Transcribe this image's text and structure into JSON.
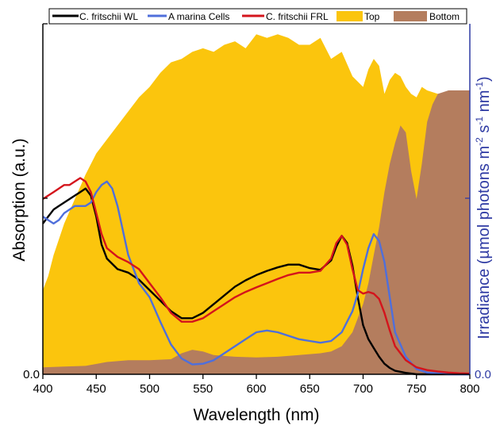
{
  "chart_data": {
    "type": "area",
    "xlabel": "Wavelength (nm)",
    "ylabel_left": "Absorption (a.u.)",
    "ylabel_right_parts": [
      "Irradiance (µmol photons m",
      "-2",
      " s",
      "-1",
      " nm",
      "-1",
      ")"
    ],
    "xlim": [
      400,
      800
    ],
    "x_ticks": [
      400,
      450,
      500,
      550,
      600,
      650,
      700,
      750,
      800
    ],
    "y_left_tick_label": "0.0",
    "y_right_tick_label": "0.0",
    "grid": false,
    "legend_position": "top",
    "colors": {
      "wl": "#000000",
      "cells": "#4f6fdb",
      "frl": "#d4141c",
      "top": "#fbc50d",
      "bottom": "#b47d5e",
      "right_axis": "#2e3aa3"
    },
    "area_series": [
      {
        "name": "Top",
        "color": "#fbc50d",
        "x": [
          400,
          405,
          410,
          420,
          430,
          440,
          450,
          460,
          470,
          480,
          490,
          500,
          510,
          520,
          530,
          540,
          550,
          560,
          570,
          580,
          590,
          600,
          610,
          620,
          630,
          640,
          650,
          660,
          670,
          680,
          690,
          700,
          705,
          710,
          715,
          720,
          725,
          730,
          735,
          740,
          745,
          750,
          755,
          760,
          770,
          780,
          790,
          800
        ],
        "y": [
          0.24,
          0.28,
          0.34,
          0.43,
          0.5,
          0.57,
          0.63,
          0.67,
          0.71,
          0.75,
          0.79,
          0.82,
          0.86,
          0.89,
          0.9,
          0.92,
          0.93,
          0.92,
          0.94,
          0.95,
          0.93,
          0.97,
          0.96,
          0.97,
          0.96,
          0.94,
          0.94,
          0.96,
          0.9,
          0.92,
          0.85,
          0.82,
          0.87,
          0.9,
          0.88,
          0.8,
          0.84,
          0.86,
          0.85,
          0.82,
          0.8,
          0.79,
          0.82,
          0.81,
          0.8,
          0.8,
          0.8,
          0.8
        ]
      },
      {
        "name": "Bottom",
        "color": "#b47d5e",
        "x": [
          400,
          420,
          440,
          460,
          480,
          500,
          520,
          530,
          540,
          550,
          560,
          580,
          600,
          620,
          640,
          660,
          670,
          680,
          690,
          700,
          705,
          710,
          715,
          720,
          725,
          730,
          735,
          740,
          745,
          750,
          755,
          760,
          765,
          770,
          780,
          790,
          800
        ],
        "y": [
          0.02,
          0.022,
          0.024,
          0.035,
          0.04,
          0.04,
          0.043,
          0.06,
          0.07,
          0.065,
          0.055,
          0.05,
          0.048,
          0.05,
          0.055,
          0.06,
          0.065,
          0.08,
          0.12,
          0.2,
          0.26,
          0.34,
          0.42,
          0.52,
          0.6,
          0.66,
          0.71,
          0.69,
          0.58,
          0.5,
          0.6,
          0.72,
          0.77,
          0.8,
          0.81,
          0.81,
          0.81
        ]
      }
    ],
    "line_series": [
      {
        "name": "C. fritschii WL",
        "color": "#000000",
        "x": [
          400,
          405,
          410,
          415,
          420,
          425,
          430,
          435,
          440,
          445,
          450,
          455,
          460,
          470,
          480,
          490,
          500,
          510,
          520,
          530,
          540,
          550,
          560,
          570,
          580,
          590,
          600,
          610,
          620,
          630,
          640,
          650,
          660,
          670,
          675,
          680,
          685,
          690,
          695,
          700,
          705,
          710,
          715,
          720,
          725,
          730,
          740,
          750,
          760,
          780,
          800
        ],
        "y": [
          0.43,
          0.45,
          0.47,
          0.48,
          0.49,
          0.5,
          0.51,
          0.52,
          0.53,
          0.51,
          0.45,
          0.37,
          0.33,
          0.3,
          0.29,
          0.27,
          0.24,
          0.21,
          0.18,
          0.16,
          0.16,
          0.175,
          0.2,
          0.225,
          0.25,
          0.268,
          0.283,
          0.295,
          0.305,
          0.313,
          0.313,
          0.303,
          0.298,
          0.325,
          0.365,
          0.395,
          0.375,
          0.31,
          0.22,
          0.14,
          0.1,
          0.075,
          0.05,
          0.03,
          0.018,
          0.01,
          0.004,
          0.0,
          0.0,
          0.0,
          0.0
        ]
      },
      {
        "name": "A marina Cells",
        "color": "#4f6fdb",
        "x": [
          400,
          405,
          410,
          415,
          420,
          425,
          430,
          435,
          440,
          445,
          450,
          455,
          460,
          465,
          470,
          480,
          490,
          500,
          510,
          520,
          530,
          540,
          550,
          560,
          570,
          580,
          590,
          600,
          610,
          620,
          630,
          640,
          650,
          660,
          670,
          680,
          690,
          695,
          700,
          705,
          710,
          715,
          720,
          725,
          730,
          740,
          750,
          760,
          780,
          800
        ],
        "y": [
          0.45,
          0.44,
          0.43,
          0.44,
          0.46,
          0.47,
          0.48,
          0.48,
          0.48,
          0.49,
          0.52,
          0.54,
          0.55,
          0.53,
          0.48,
          0.34,
          0.26,
          0.22,
          0.15,
          0.085,
          0.045,
          0.028,
          0.03,
          0.04,
          0.06,
          0.08,
          0.1,
          0.12,
          0.125,
          0.12,
          0.11,
          0.1,
          0.095,
          0.09,
          0.095,
          0.12,
          0.18,
          0.23,
          0.3,
          0.36,
          0.4,
          0.38,
          0.32,
          0.22,
          0.12,
          0.05,
          0.015,
          0.005,
          0.0,
          0.0
        ]
      },
      {
        "name": "C. fritschii FRL",
        "color": "#d4141c",
        "x": [
          400,
          405,
          410,
          415,
          420,
          425,
          430,
          435,
          440,
          445,
          450,
          455,
          460,
          470,
          480,
          490,
          500,
          510,
          520,
          530,
          540,
          550,
          560,
          570,
          580,
          590,
          600,
          610,
          620,
          630,
          640,
          650,
          660,
          670,
          675,
          680,
          685,
          690,
          695,
          700,
          705,
          710,
          715,
          720,
          725,
          730,
          740,
          750,
          760,
          770,
          780,
          790,
          800
        ],
        "y": [
          0.5,
          0.51,
          0.52,
          0.53,
          0.54,
          0.54,
          0.55,
          0.56,
          0.55,
          0.52,
          0.46,
          0.4,
          0.36,
          0.335,
          0.32,
          0.3,
          0.26,
          0.22,
          0.175,
          0.15,
          0.15,
          0.16,
          0.18,
          0.2,
          0.22,
          0.235,
          0.248,
          0.26,
          0.272,
          0.283,
          0.29,
          0.29,
          0.295,
          0.33,
          0.375,
          0.395,
          0.37,
          0.3,
          0.24,
          0.23,
          0.235,
          0.23,
          0.215,
          0.175,
          0.125,
          0.08,
          0.04,
          0.02,
          0.012,
          0.008,
          0.005,
          0.003,
          0.002
        ]
      }
    ],
    "legend": [
      {
        "label": "C. fritschii WL",
        "kind": "line",
        "color": "#000000"
      },
      {
        "label": "A marina Cells",
        "kind": "line",
        "color": "#4f6fdb"
      },
      {
        "label": "C. fritschii FRL",
        "kind": "line",
        "color": "#d4141c"
      },
      {
        "label": "Top",
        "kind": "box",
        "color": "#fbc50d"
      },
      {
        "label": "Bottom",
        "kind": "box",
        "color": "#b47d5e"
      }
    ]
  }
}
